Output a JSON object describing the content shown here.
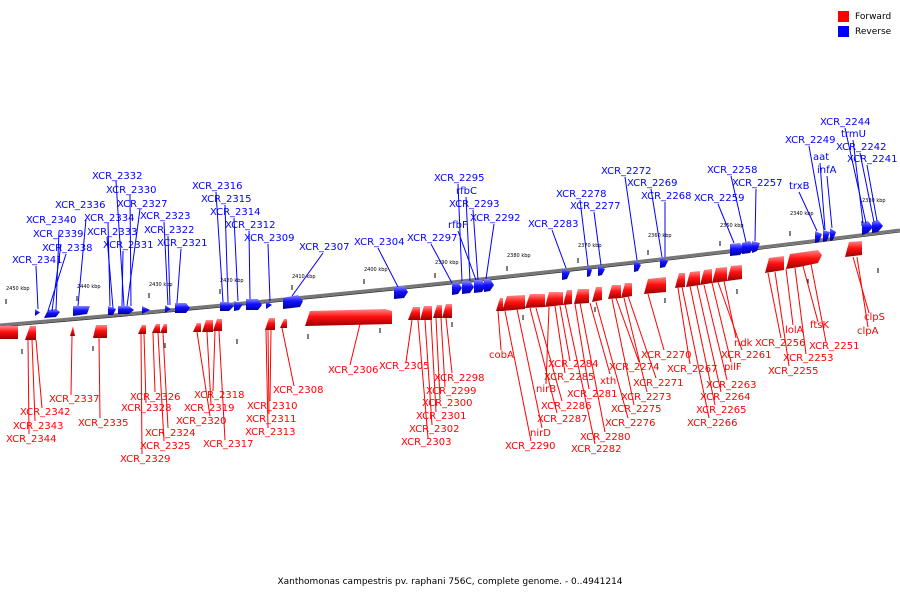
{
  "legend": {
    "forward_label": "Forward",
    "reverse_label": "Reverse",
    "forward_color": "#ff0000",
    "reverse_color": "#0000ff"
  },
  "caption": "Xanthomonas campestris pv. raphani 756C, complete genome. - 0..4941214",
  "scale_labels": [
    "2450 kbp",
    "2440 kbp",
    "2430 kbp",
    "2420 kbp",
    "2410 kbp",
    "2400 kbp",
    "2390 kbp",
    "2380 kbp",
    "2370 kbp",
    "2360 kbp",
    "2350 kbp",
    "2340 kbp",
    "2330 kbp"
  ],
  "reverse_genes": [
    "XCR_2341",
    "XCR_2338",
    "XCR_2339",
    "XCR_2340",
    "XCR_2336",
    "XCR_2334",
    "XCR_2333",
    "XCR_2331",
    "XCR_2327",
    "XCR_2330",
    "XCR_2332",
    "XCR_2323",
    "XCR_2322",
    "XCR_2321",
    "XCR_2316",
    "XCR_2315",
    "XCR_2314",
    "XCR_2312",
    "XCR_2309",
    "XCR_2307",
    "XCR_2304",
    "XCR_2297",
    "XCR_2295",
    "rfbC",
    "XCR_2293",
    "rfbF",
    "XCR_2292",
    "XCR_2283",
    "XCR_2278",
    "XCR_2277",
    "XCR_2272",
    "XCR_2269",
    "XCR_2268",
    "XCR_2259",
    "XCR_2258",
    "XCR_2257",
    "trxB",
    "XCR_2249",
    "aat",
    "infA",
    "trmU",
    "XCR_2244",
    "XCR_2242",
    "XCR_2241"
  ],
  "forward_genes_lower": [
    "XCR_2344",
    "XCR_2343",
    "XCR_2342",
    "XCR_2337",
    "XCR_2335",
    "XCR_2329",
    "XCR_2328",
    "XCR_2326",
    "XCR_2325",
    "XCR_2324",
    "XCR_2320",
    "XCR_2319",
    "XCR_2318",
    "XCR_2317",
    "XCR_2313",
    "XCR_2311",
    "XCR_2310",
    "XCR_2308",
    "XCR_2306",
    "XCR_2305",
    "XCR_2303",
    "XCR_2302",
    "XCR_2301",
    "XCR_2300",
    "XCR_2299",
    "XCR_2298",
    "cobA",
    "XCR_2290",
    "nirD",
    "XCR_2287",
    "XCR_2286",
    "nirB",
    "XCR_2285",
    "XCR_2284",
    "XCR_2282",
    "XCR_2281",
    "XCR_2280",
    "xth",
    "XCR_2276",
    "XCR_2275",
    "XCR_2274",
    "XCR_2273",
    "XCR_2271",
    "XCR_2270",
    "XCR_2267",
    "XCR_2266",
    "XCR_2265",
    "XCR_2264",
    "XCR_2263",
    "pilF",
    "XCR_2261",
    "ndk",
    "XCR_2256",
    "XCR_2255",
    "lolA",
    "XCR_2253",
    "ftsK",
    "XCR_2251",
    "clpS",
    "clpA"
  ]
}
